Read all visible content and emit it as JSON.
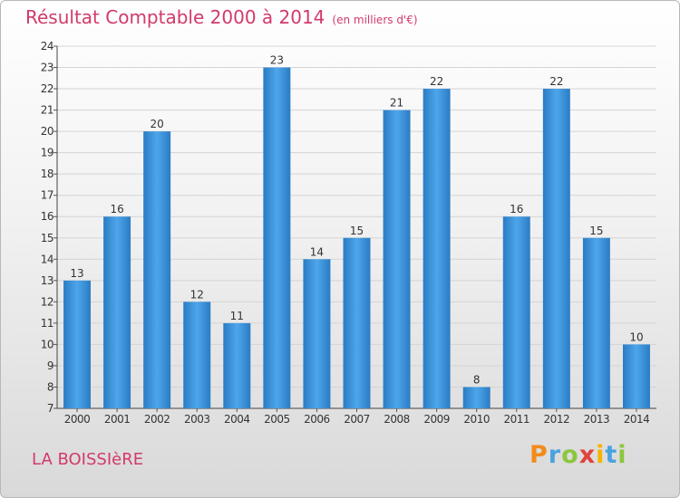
{
  "header": {
    "title": "Résultat Comptable 2000 à 2014",
    "subtitle": "(en milliers d'€)"
  },
  "footer": {
    "commune": "LA BOISSIèRE",
    "logo_letters": [
      {
        "ch": "P",
        "color": "#f28b1c"
      },
      {
        "ch": "r",
        "color": "#4aa3df"
      },
      {
        "ch": "o",
        "color": "#8cc63f"
      },
      {
        "ch": "x",
        "color": "#e0433f"
      },
      {
        "ch": "i",
        "color": "#f5b400"
      },
      {
        "ch": "t",
        "color": "#4aa3df"
      },
      {
        "ch": "i",
        "color": "#8cc63f"
      }
    ]
  },
  "chart_data": {
    "type": "bar",
    "title": "Résultat Comptable 2000 à 2014",
    "subtitle": "(en milliers d'€)",
    "categories": [
      "2000",
      "2001",
      "2002",
      "2003",
      "2004",
      "2005",
      "2006",
      "2007",
      "2008",
      "2009",
      "2010",
      "2011",
      "2012",
      "2013",
      "2014"
    ],
    "values": [
      13,
      16,
      20,
      12,
      11,
      23,
      14,
      15,
      21,
      22,
      8,
      16,
      22,
      15,
      10
    ],
    "ylim": [
      7,
      24
    ],
    "yticks": [
      7,
      8,
      9,
      10,
      11,
      12,
      13,
      14,
      15,
      16,
      17,
      18,
      19,
      20,
      21,
      22,
      23,
      24
    ],
    "grid": true,
    "bar_color": "#3f94d8"
  }
}
